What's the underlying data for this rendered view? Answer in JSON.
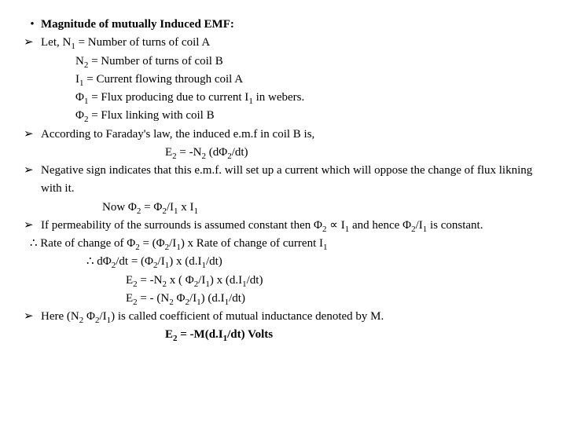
{
  "title": "Magnitude of mutually Induced EMF:",
  "let_line": "Let, N",
  "n1_def": " = Number of turns of coil A",
  "n2_def": " = Number of turns of coil B",
  "i1_def": " = Current flowing through coil A",
  "phi1_def": " = Flux producing due to current I",
  "phi1_def_end": " in webers.",
  "phi2_def": " = Flux linking with coil B",
  "faraday": "According to Faraday's law, the induced e.m.f in coil B is,",
  "e2_eq1_a": "E",
  "e2_eq1_b": " = -N",
  "e2_eq1_c": "  (dΦ",
  "e2_eq1_d": "/dt)",
  "negative_sign": "Negative sign indicates that this e.m.f. will set up a current which will oppose the change of flux likning with it.",
  "now_a": "Now Φ",
  "now_b": " = Φ",
  "now_c": "/I",
  "now_d": " x I",
  "permeability_a": "If permeability of the surrounds is assumed constant then Φ",
  "permeability_b": " ∝ I",
  "permeability_c": " and hence Φ",
  "permeability_d": "/I",
  "permeability_e": " is constant.",
  "rate_a": "Rate of change of Φ",
  "rate_b": " = (Φ",
  "rate_c": "/I",
  "rate_d": ") x Rate of change of current I",
  "dphi_a": "dΦ",
  "dphi_b": "/dt = (Φ",
  "dphi_c": "/I",
  "dphi_d": ")  x (d.I",
  "dphi_e": "/dt)",
  "e2_eq2_a": "E",
  "e2_eq2_b": " = -N",
  "e2_eq2_c": " x ( Φ",
  "e2_eq2_d": "/I",
  "e2_eq2_e": ")  x (d.I",
  "e2_eq2_f": "/dt)",
  "e2_eq3_a": "E",
  "e2_eq3_b": " = - (N",
  "e2_eq3_c": " Φ",
  "e2_eq3_d": "/I",
  "e2_eq3_e": ") (d.I",
  "e2_eq3_f": "/dt)",
  "here_a": "Here (N",
  "here_b": " Φ",
  "here_c": "/I",
  "here_d": ") is called coefficient of mutual inductance denoted by M.",
  "final_a": "E",
  "final_b": " = -M(d.I",
  "final_c": "/dt) Volts",
  "bullet_dot": "•",
  "bullet_arrow": "➢",
  "therefore": "∴",
  "N": "N",
  "I": "I",
  "Phi": "Φ",
  "s1": "1",
  "s2": "2"
}
